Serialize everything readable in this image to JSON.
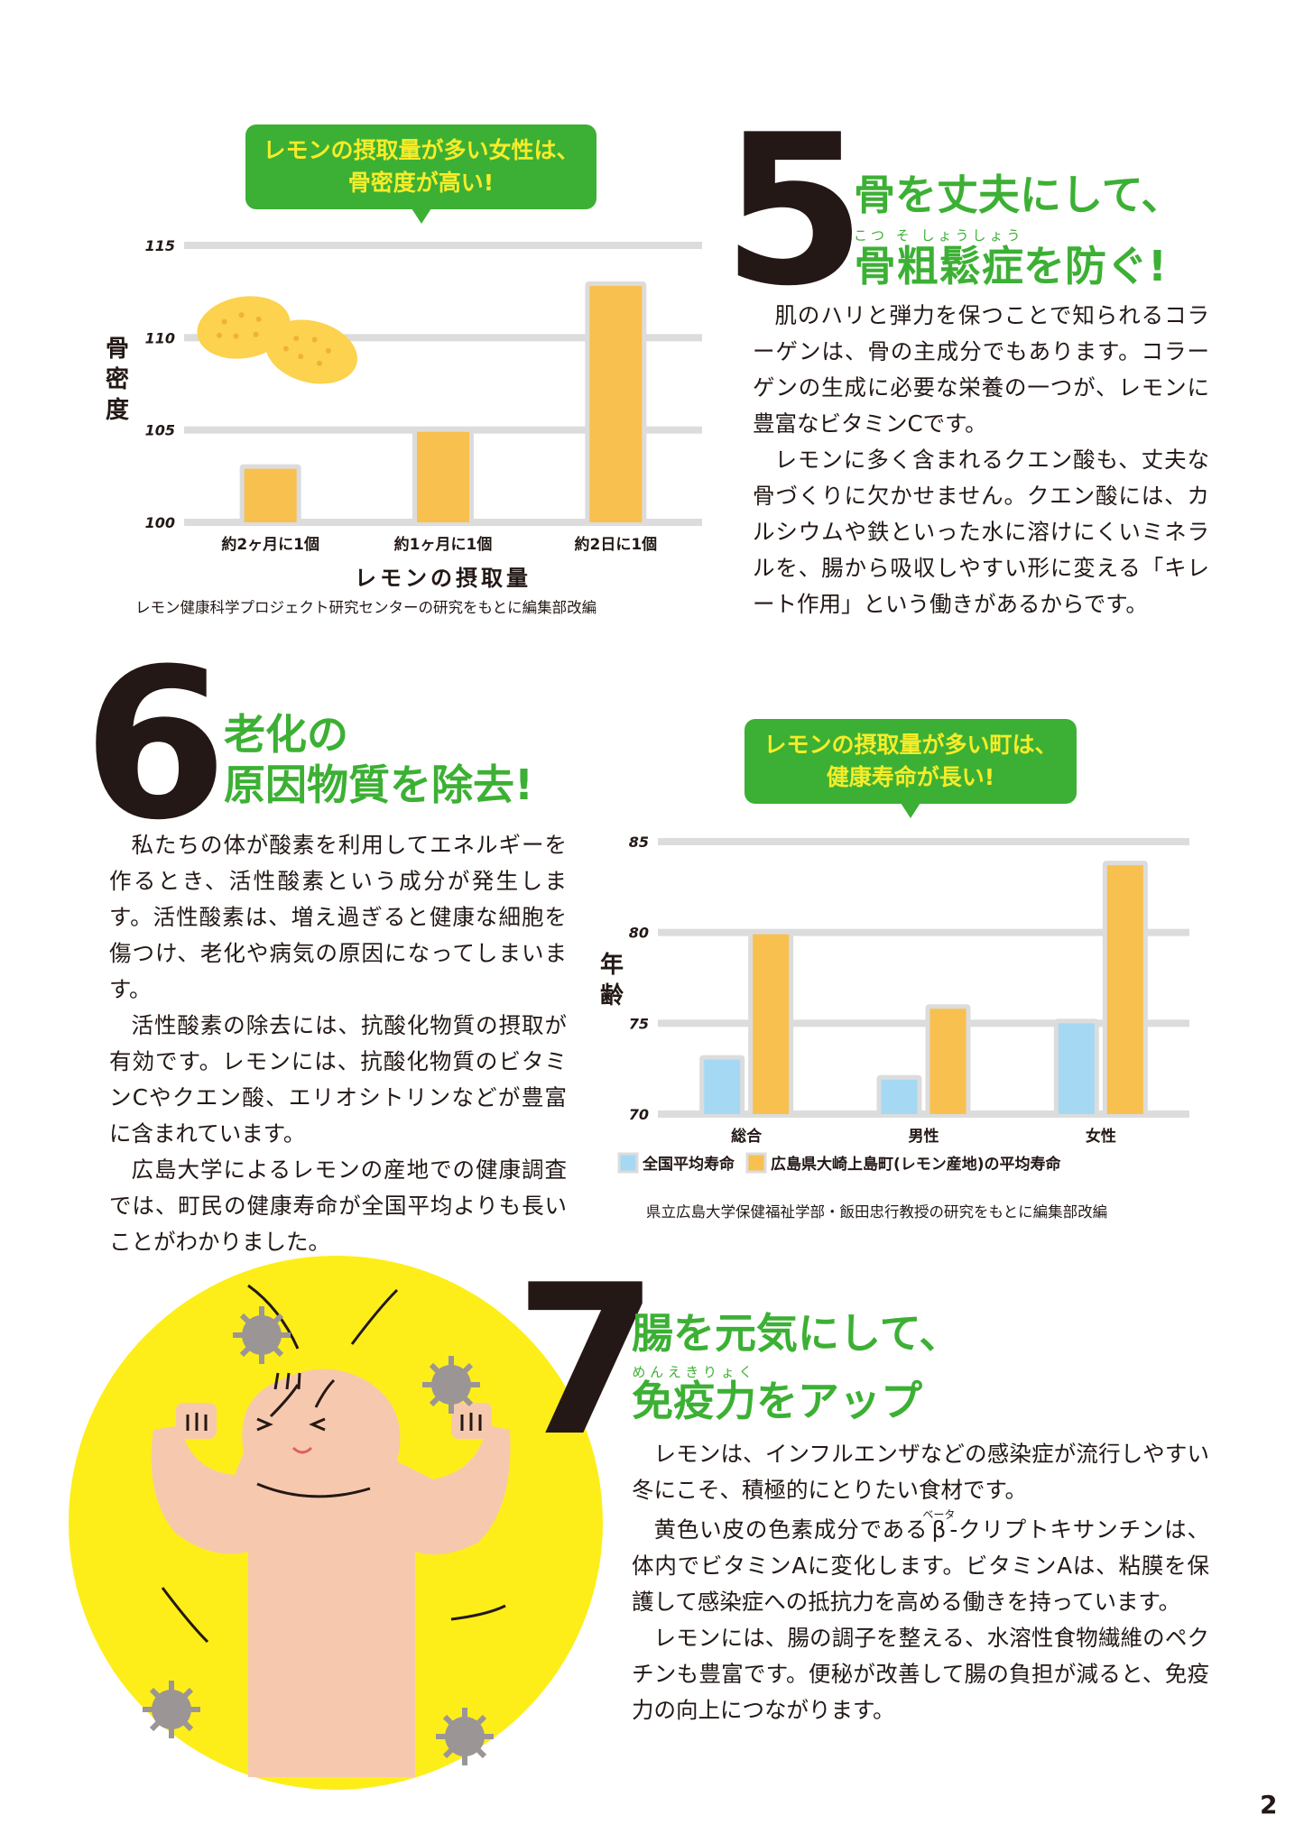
{
  "section5": {
    "number": "5",
    "title_line1": "骨を丈夫にして、",
    "title_line2_ruby_base": "骨粗鬆症",
    "title_line2_ruby_text": "こつ そ しょうしょう",
    "title_line2_rest": "を防ぐ!",
    "paragraphs": [
      "肌のハリと弾力を保つことで知られるコラーゲンは、骨の主成分でもあります。コラーゲンの生成に必要な栄養の一つが、レモンに豊富なビタミンCです。",
      "レモンに多く含まれるクエン酸も、丈夫な骨づくりに欠かせません。クエン酸には、カルシウムや鉄といった水に溶けにくいミネラルを、腸から吸収しやすい形に変える「キレート作用」という働きがあるからです。"
    ]
  },
  "section6": {
    "number": "6",
    "title_line1": "老化の",
    "title_line2": "原因物質を除去!",
    "paragraphs": [
      "私たちの体が酸素を利用してエネルギーを作るとき、活性酸素という成分が発生します。活性酸素は、増え過ぎると健康な細胞を傷つけ、老化や病気の原因になってしまいます。",
      "活性酸素の除去には、抗酸化物質の摂取が有効です。レモンには、抗酸化物質のビタミンCやクエン酸、エリオシトリンなどが豊富に含まれています。",
      "広島大学によるレモンの産地での健康調査では、町民の健康寿命が全国平均よりも長いことがわかりました。"
    ]
  },
  "section7": {
    "number": "7",
    "title_line1": "腸を元気にして、",
    "title_line2_ruby_base": "免疫力",
    "title_line2_ruby_text": "めんえきりょく",
    "title_line2_rest": "をアップ",
    "p1": "レモンは、インフルエンザなどの感染症が流行しやすい冬にこそ、積極的にとりたい食材です。",
    "p2_before": "黄色い皮の色素成分である",
    "p2_ruby_base": "β",
    "p2_ruby_text": "ベータ",
    "p2_after": "-クリプトキサンチンは、体内でビタミンAに変化します。ビタミンAは、粘膜を保護して感染症への抵抗力を高める働きを持っています。",
    "p3": "レモンには、腸の調子を整える、水溶性食物繊維のペクチンも豊富です。便秘が改善して腸の負担が減ると、免疫力の向上につながります。"
  },
  "page_number": "2",
  "colors": {
    "green": "#3cb034",
    "bubble_text": "#f6ec2a",
    "bar_yellow": "#f8c04e",
    "bar_blue": "#a5d9f3",
    "grid": "#dcdcdc",
    "circle_yellow": "#fdee1a",
    "skin": "#f6c9ae"
  },
  "chart_data": [
    {
      "type": "bar",
      "callout_line1": "レモンの摂取量が多い女性は、",
      "callout_line2": "骨密度が高い!",
      "categories": [
        "約2ヶ月に1個",
        "約1ヶ月に1個",
        "約2日に1個"
      ],
      "values": [
        102.9,
        104.9,
        112.8
      ],
      "ylabel": "骨密度",
      "xlabel": "レモンの摂取量",
      "ylim": [
        100,
        115
      ],
      "yticks": [
        "100",
        "105",
        "110",
        "115"
      ],
      "grid": true,
      "source": "レモン健康科学プロジェクト研究センターの研究をもとに編集部改編"
    },
    {
      "type": "bar",
      "callout_line1": "レモンの摂取量が多い町は、",
      "callout_line2": "健康寿命が長い!",
      "categories": [
        "総合",
        "男性",
        "女性"
      ],
      "series": [
        {
          "name": "全国平均寿命",
          "values": [
            73.0,
            71.9,
            75.0
          ]
        },
        {
          "name": "広島県大崎上島町(レモン産地)の平均寿命",
          "values": [
            79.9,
            75.8,
            83.7
          ]
        }
      ],
      "ylabel": "年齢",
      "ylim": [
        70,
        85
      ],
      "yticks": [
        "70",
        "75",
        "80",
        "85"
      ],
      "grid": true,
      "legend": "bottom",
      "source": "県立広島大学保健福祉学部・飯田忠行教授の研究をもとに編集部改編"
    }
  ]
}
